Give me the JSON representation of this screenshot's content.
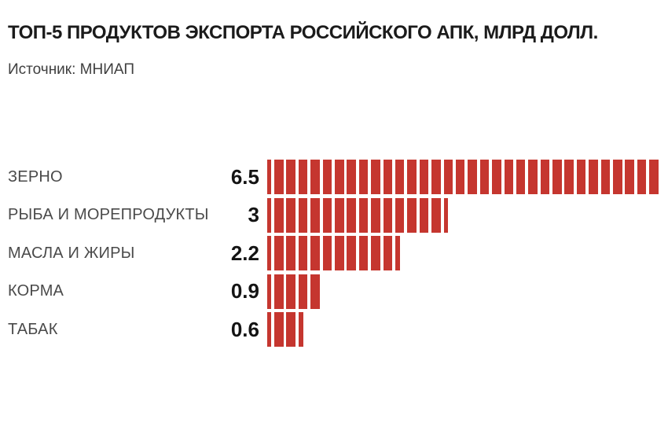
{
  "title": "ТОП-5 ПРОДУКТОВ ЭКСПОРТА РОССИЙСКОГО АПК, МЛРД ДОЛЛ.",
  "source": "Источник: МНИАП",
  "colors": {
    "background": "#ffffff",
    "bar": "#c5362f",
    "title_text": "#1b1b1b",
    "category_text": "#4a4a4a",
    "value_text": "#141414"
  },
  "chart_data": {
    "type": "bar",
    "orientation": "horizontal",
    "style": "segmented-stripe-bars",
    "title": "ТОП-5 ПРОДУКТОВ ЭКСПОРТА РОССИЙСКОГО АПК, МЛРД ДОЛЛ.",
    "unit": "млрд долл.",
    "source": "МНИАП",
    "categories": [
      "ЗЕРНО",
      "РЫБА И МОРЕПРОДУКТЫ",
      "МАСЛА И ЖИРЫ",
      "КОРМА",
      "ТАБАК"
    ],
    "values": [
      6.5,
      3,
      2.2,
      0.9,
      0.6
    ],
    "value_labels": [
      "6.5",
      "3",
      "2.2",
      "0.9",
      "0.6"
    ],
    "segment_unit": 0.2,
    "xlim": [
      0,
      6.5
    ],
    "grid": false,
    "legend": false,
    "bar_color": "#c5362f"
  }
}
